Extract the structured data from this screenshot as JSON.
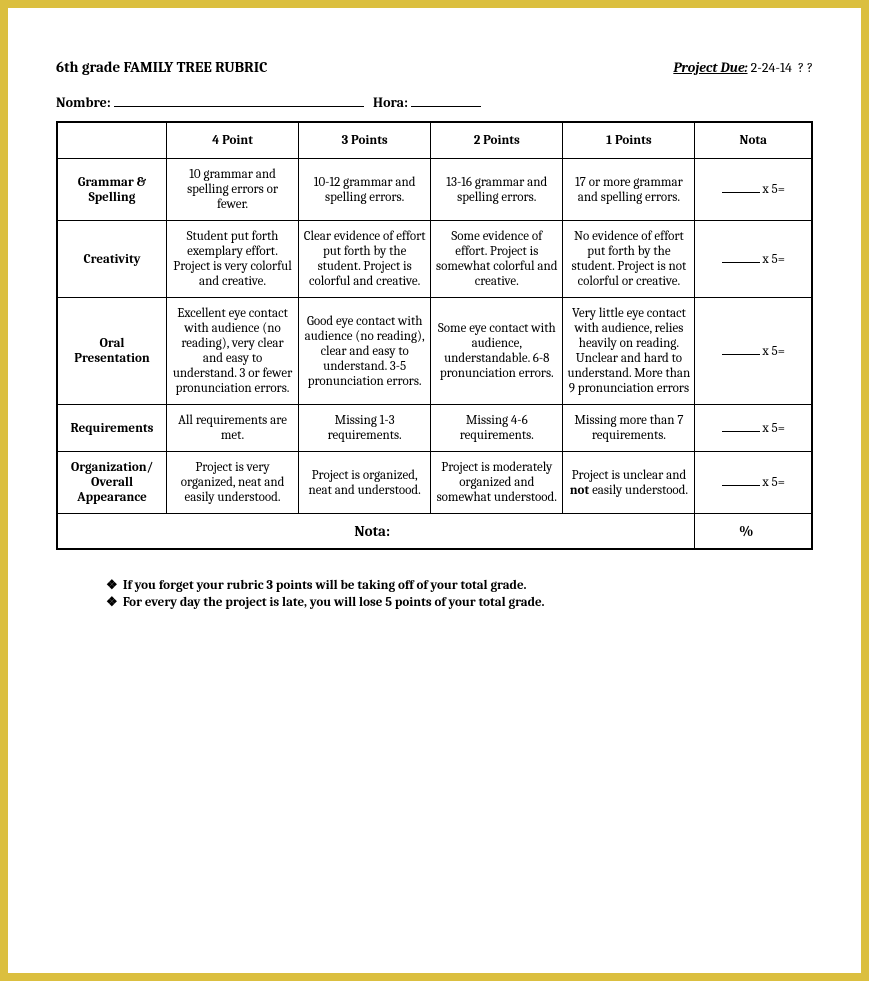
{
  "header": {
    "title": "6th grade FAMILY TREE RUBRIC",
    "due_label": "Project Due:",
    "due_date": "2-24-14",
    "due_suffix": "?  ?",
    "name_label": "Nombre:",
    "hour_label": "Hora:"
  },
  "columns": {
    "blank": "",
    "p4": "4 Point",
    "p3": "3 Points",
    "p2": "2 Points",
    "p1": "1 Points",
    "nota": "Nota"
  },
  "rows": [
    {
      "label": "Grammar & Spelling",
      "p4": "10 grammar and spelling errors or fewer.",
      "p3": "10-12 grammar and spelling errors.",
      "p2": "13-16 grammar and spelling errors.",
      "p1": "17 or more grammar and spelling errors.",
      "mult": "x 5="
    },
    {
      "label": "Creativity",
      "p4": "Student put forth exemplary effort.  Project is very colorful and creative.",
      "p3": "Clear evidence of effort put forth by the student.  Project is colorful and creative.",
      "p2": "Some evidence of effort.  Project is somewhat colorful and creative.",
      "p1": "No evidence of effort put forth by the student.  Project is not colorful or creative.",
      "mult": "x 5="
    },
    {
      "label": "Oral Presentation",
      "p4": "Excellent eye contact with audience (no reading), very clear and easy to understand.  3 or fewer pronunciation errors.",
      "p3": "Good eye contact with audience (no reading), clear and easy to understand.  3-5 pronunciation errors.",
      "p2": "Some eye contact with audience, understandable.  6-8 pronunciation errors.",
      "p1": "Very little eye contact with audience, relies heavily on reading.  Unclear and hard to understand.  More than 9 pronunciation errors",
      "mult": "x 5="
    },
    {
      "label": "Requirements",
      "p4": "All requirements are met.",
      "p3": "Missing 1-3 requirements.",
      "p2": "Missing 4-6 requirements.",
      "p1": "Missing more than 7 requirements.",
      "mult": "x 5="
    },
    {
      "label": "Organization/ Overall Appearance",
      "p4": "Project is very organized, neat and easily understood.",
      "p3": "Project is organized, neat and understood.",
      "p2": "Project is moderately organized and somewhat understood.",
      "p1_pre": "Project is unclear and ",
      "p1_bold": "not",
      "p1_post": " easily understood.",
      "mult": "x 5="
    }
  ],
  "total": {
    "label": "Nota:",
    "symbol": "%"
  },
  "notes": {
    "b1": "If you forget your rubric 3 points will be taking off of your total grade.",
    "b2": "For every day the project is late, you will lose 5 points of your total grade."
  },
  "glyphs": {
    "diamond": "❖"
  }
}
